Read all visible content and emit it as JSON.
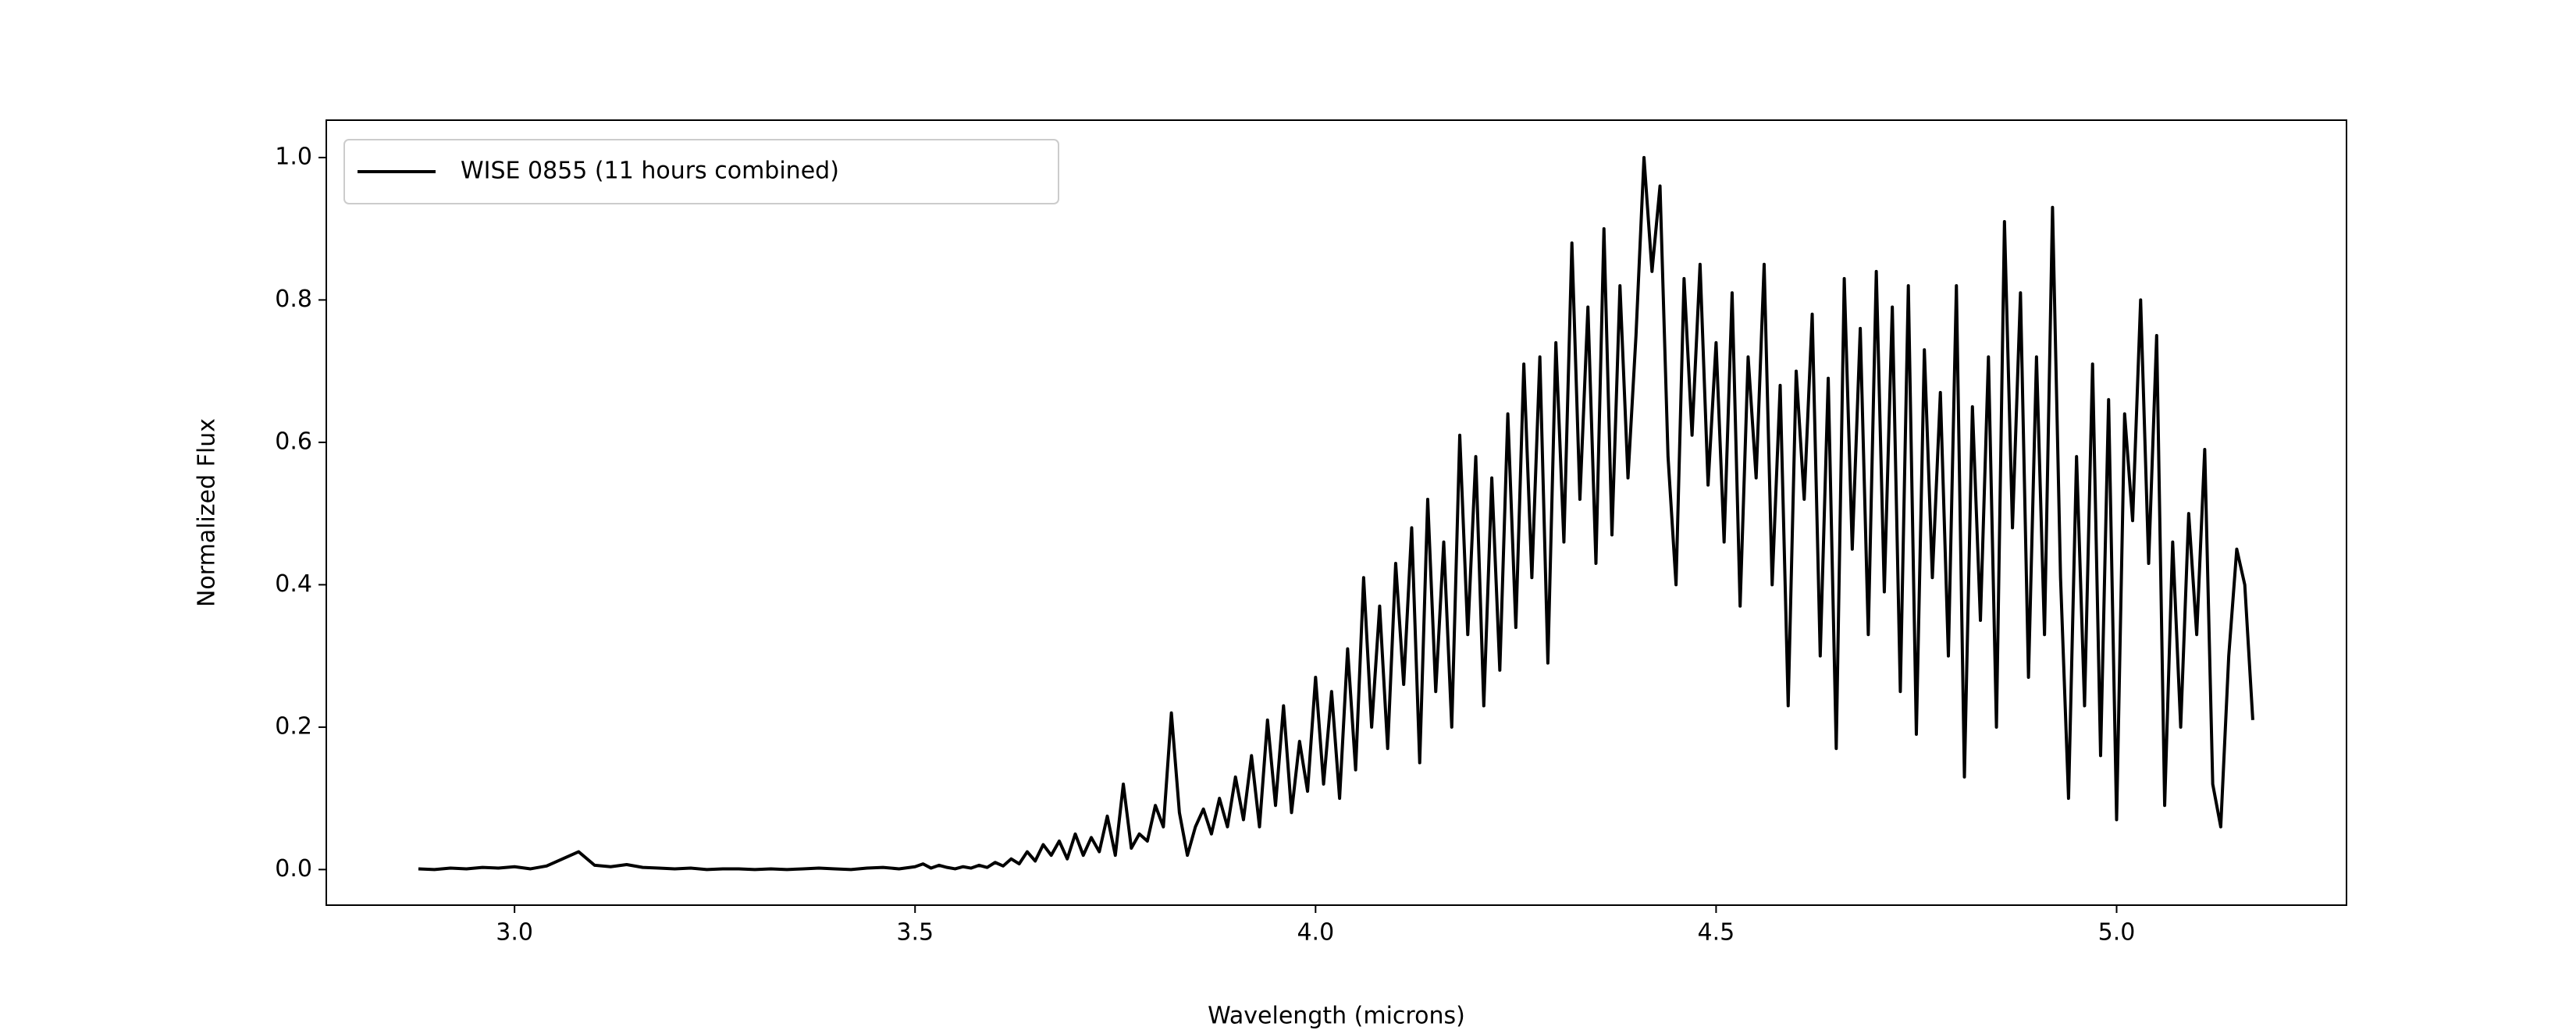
{
  "chart_data": {
    "type": "line",
    "xlabel": "Wavelength (microns)",
    "ylabel": "Normalized Flux",
    "xlim": [
      2.765,
      5.287
    ],
    "ylim": [
      -0.05,
      1.0525
    ],
    "xticks": [
      {
        "value": 3.0,
        "label": "3.0"
      },
      3.5,
      {
        "value": 4.0,
        "label": "4.0"
      },
      4.5,
      {
        "value": 5.0,
        "label": "5.0"
      }
    ],
    "yticks": [
      {
        "value": 0.0,
        "label": "0.0"
      },
      0.2,
      0.4,
      0.6,
      0.8,
      {
        "value": 1.0,
        "label": "1.0"
      }
    ],
    "legend": "upper left",
    "x": [
      2.88,
      2.9,
      2.92,
      2.94,
      2.96,
      2.98,
      3.0,
      3.02,
      3.04,
      3.06,
      3.08,
      3.1,
      3.12,
      3.14,
      3.16,
      3.18,
      3.2,
      3.22,
      3.24,
      3.26,
      3.28,
      3.3,
      3.32,
      3.34,
      3.36,
      3.38,
      3.4,
      3.42,
      3.44,
      3.46,
      3.48,
      3.5,
      3.51,
      3.52,
      3.53,
      3.54,
      3.55,
      3.56,
      3.57,
      3.58,
      3.59,
      3.6,
      3.61,
      3.62,
      3.63,
      3.64,
      3.65,
      3.66,
      3.67,
      3.68,
      3.69,
      3.7,
      3.71,
      3.72,
      3.73,
      3.74,
      3.75,
      3.76,
      3.77,
      3.78,
      3.79,
      3.8,
      3.81,
      3.82,
      3.83,
      3.84,
      3.85,
      3.86,
      3.87,
      3.88,
      3.89,
      3.9,
      3.91,
      3.92,
      3.93,
      3.94,
      3.95,
      3.96,
      3.97,
      3.98,
      3.99,
      4.0,
      4.01,
      4.02,
      4.03,
      4.04,
      4.05,
      4.06,
      4.07,
      4.08,
      4.09,
      4.1,
      4.11,
      4.12,
      4.13,
      4.14,
      4.15,
      4.16,
      4.17,
      4.18,
      4.19,
      4.2,
      4.21,
      4.22,
      4.23,
      4.24,
      4.25,
      4.26,
      4.27,
      4.28,
      4.29,
      4.3,
      4.31,
      4.32,
      4.33,
      4.34,
      4.35,
      4.36,
      4.37,
      4.38,
      4.39,
      4.4,
      4.41,
      4.42,
      4.43,
      4.44,
      4.45,
      4.46,
      4.47,
      4.48,
      4.49,
      4.5,
      4.51,
      4.52,
      4.53,
      4.54,
      4.55,
      4.56,
      4.57,
      4.58,
      4.59,
      4.6,
      4.61,
      4.62,
      4.63,
      4.64,
      4.65,
      4.66,
      4.67,
      4.68,
      4.69,
      4.7,
      4.71,
      4.72,
      4.73,
      4.74,
      4.75,
      4.76,
      4.77,
      4.78,
      4.79,
      4.8,
      4.81,
      4.82,
      4.83,
      4.84,
      4.85,
      4.86,
      4.87,
      4.88,
      4.89,
      4.9,
      4.91,
      4.92,
      4.93,
      4.94,
      4.95,
      4.96,
      4.97,
      4.98,
      4.99,
      5.0,
      5.01,
      5.02,
      5.03,
      5.04,
      5.05,
      5.06,
      5.07,
      5.08,
      5.09,
      5.1,
      5.11,
      5.12,
      5.13,
      5.14,
      5.15,
      5.16,
      5.17
    ],
    "series": [
      {
        "name": "WISE 0855 (11 hours combined)",
        "color": "#000000",
        "values": [
          0.001,
          0.0,
          0.002,
          0.001,
          0.003,
          0.002,
          0.004,
          0.001,
          0.005,
          0.015,
          0.025,
          0.006,
          0.004,
          0.007,
          0.003,
          0.002,
          0.001,
          0.002,
          0.0,
          0.001,
          0.001,
          0.0,
          0.001,
          0.0,
          0.001,
          0.002,
          0.001,
          0.0,
          0.002,
          0.003,
          0.001,
          0.004,
          0.008,
          0.002,
          0.006,
          0.003,
          0.001,
          0.004,
          0.002,
          0.006,
          0.003,
          0.01,
          0.005,
          0.015,
          0.008,
          0.025,
          0.012,
          0.035,
          0.02,
          0.04,
          0.015,
          0.05,
          0.02,
          0.045,
          0.025,
          0.075,
          0.02,
          0.12,
          0.03,
          0.05,
          0.04,
          0.09,
          0.06,
          0.22,
          0.08,
          0.02,
          0.06,
          0.085,
          0.05,
          0.1,
          0.06,
          0.13,
          0.07,
          0.16,
          0.06,
          0.21,
          0.09,
          0.23,
          0.08,
          0.18,
          0.11,
          0.27,
          0.12,
          0.25,
          0.1,
          0.31,
          0.14,
          0.41,
          0.2,
          0.37,
          0.17,
          0.43,
          0.26,
          0.48,
          0.15,
          0.52,
          0.25,
          0.46,
          0.2,
          0.61,
          0.33,
          0.58,
          0.23,
          0.55,
          0.28,
          0.64,
          0.34,
          0.71,
          0.41,
          0.72,
          0.29,
          0.74,
          0.46,
          0.88,
          0.52,
          0.79,
          0.43,
          0.9,
          0.47,
          0.82,
          0.55,
          0.75,
          1.0,
          0.84,
          0.96,
          0.58,
          0.4,
          0.83,
          0.61,
          0.85,
          0.54,
          0.74,
          0.46,
          0.81,
          0.37,
          0.72,
          0.55,
          0.85,
          0.4,
          0.68,
          0.23,
          0.7,
          0.52,
          0.78,
          0.3,
          0.69,
          0.17,
          0.83,
          0.45,
          0.76,
          0.33,
          0.84,
          0.39,
          0.79,
          0.25,
          0.82,
          0.19,
          0.73,
          0.41,
          0.67,
          0.3,
          0.82,
          0.13,
          0.65,
          0.35,
          0.72,
          0.2,
          0.91,
          0.48,
          0.81,
          0.27,
          0.72,
          0.33,
          0.93,
          0.41,
          0.1,
          0.58,
          0.23,
          0.71,
          0.16,
          0.66,
          0.07,
          0.64,
          0.49,
          0.8,
          0.43,
          0.75,
          0.09,
          0.46,
          0.2,
          0.5,
          0.33,
          0.59,
          0.12,
          0.06,
          0.3,
          0.45,
          0.4,
          0.21
        ]
      }
    ]
  }
}
